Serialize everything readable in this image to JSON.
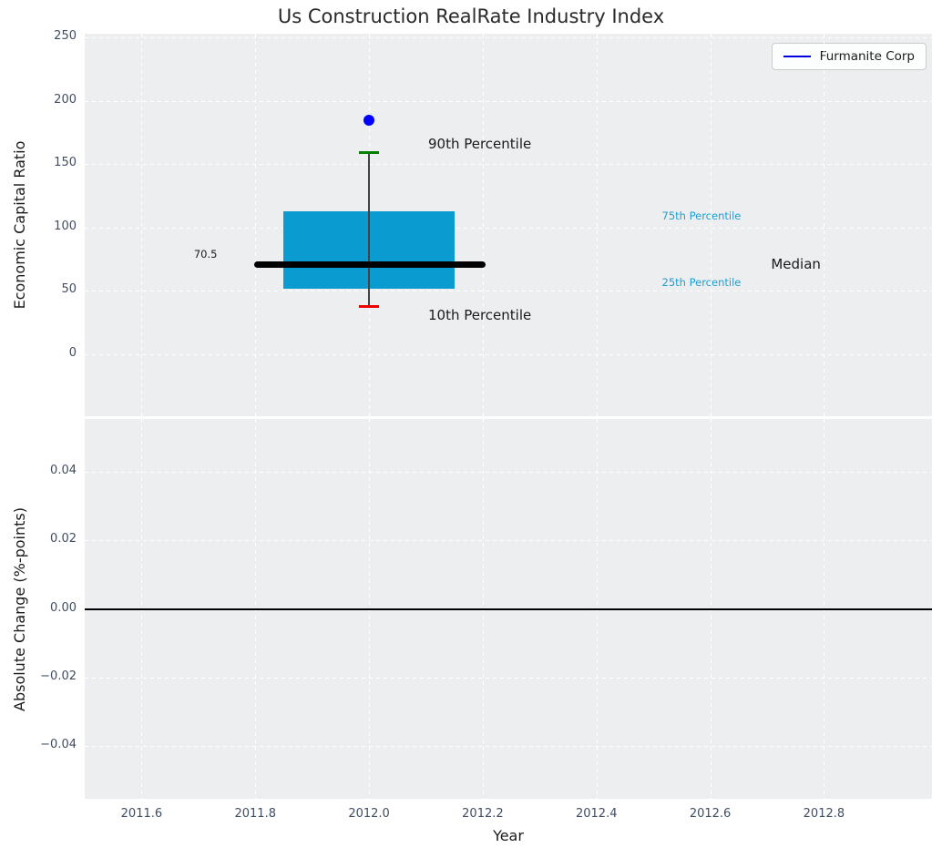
{
  "title": "Us Construction RealRate Industry Index",
  "legend": {
    "label": "Furmanite Corp"
  },
  "colors": {
    "plot_bg": "#eceef0",
    "grid": "#ffffff",
    "tick_text": "#3f4d63",
    "box_fill": "#0a9bd0",
    "percentile_text": "#1d9fd4",
    "median_line": "#000000",
    "p90_cap": "#008000",
    "p10_cap": "#ee0000",
    "company_dot": "#0000ff",
    "whisker": "#444444",
    "zero_line": "#000000",
    "legend_line": "#0000dd",
    "annotation_text": "#1a1a1a"
  },
  "axes": {
    "top": {
      "ylabel": "Economic Capital Ratio",
      "xlim": [
        2011.5,
        2012.99
      ],
      "ylim": [
        -49,
        253
      ],
      "yticks": [
        {
          "v": 0,
          "label": "0"
        },
        {
          "v": 50,
          "label": "50"
        },
        {
          "v": 100,
          "label": "100"
        },
        {
          "v": 150,
          "label": "150"
        },
        {
          "v": 200,
          "label": "200"
        },
        {
          "v": 250,
          "label": "250"
        }
      ]
    },
    "bottom": {
      "ylabel": "Absolute Change (%-points)",
      "xlabel": "Year",
      "xlim": [
        2011.5,
        2012.99
      ],
      "ylim": [
        -0.0555,
        0.0555
      ],
      "yticks": [
        {
          "v": 0.04,
          "label": "0.04"
        },
        {
          "v": 0.02,
          "label": "0.02"
        },
        {
          "v": 0.0,
          "label": "0.00"
        },
        {
          "v": -0.02,
          "label": "−0.02"
        },
        {
          "v": -0.04,
          "label": "−0.04"
        }
      ],
      "xticks": [
        {
          "v": 2011.6,
          "label": "2011.6"
        },
        {
          "v": 2011.8,
          "label": "2011.8"
        },
        {
          "v": 2012.0,
          "label": "2012.0"
        },
        {
          "v": 2012.2,
          "label": "2012.2"
        },
        {
          "v": 2012.4,
          "label": "2012.4"
        },
        {
          "v": 2012.6,
          "label": "2012.6"
        },
        {
          "v": 2012.8,
          "label": "2012.8"
        }
      ]
    }
  },
  "chart_data": {
    "type": "boxplot",
    "title": "Us Construction RealRate Industry Index",
    "xlabel": "Year",
    "ylabel_top": "Economic Capital Ratio",
    "ylabel_bottom": "Absolute Change (%-points)",
    "legend_entries": [
      "Furmanite Corp"
    ],
    "box": {
      "x": 2012.0,
      "box_halfwidth_years": 0.15,
      "cap_halfwidth_years": 0.018,
      "p10": 38,
      "q1": 52,
      "median": 70.5,
      "q3": 113,
      "p90": 159
    },
    "median_line_span": [
      2011.798,
      2012.205
    ],
    "company_point": {
      "name": "Furmanite Corp",
      "x": 2012.0,
      "y": 185
    },
    "bottom_zero_line": 0.0,
    "annotations": [
      {
        "text": "90th Percentile",
        "x": 2012.104,
        "y": 166,
        "size": 15,
        "color": "black",
        "align": "left",
        "name": "p90-label"
      },
      {
        "text": "10th Percentile",
        "x": 2012.104,
        "y": 31,
        "size": 15,
        "color": "black",
        "align": "left",
        "name": "p10-label"
      },
      {
        "text": "75th Percentile",
        "x": 2012.515,
        "y": 109,
        "size": 11.5,
        "color": "cyan",
        "align": "left",
        "name": "p75-label"
      },
      {
        "text": "25th Percentile",
        "x": 2012.515,
        "y": 57,
        "size": 11.5,
        "color": "cyan",
        "align": "left",
        "name": "p25-label"
      },
      {
        "text": "Median",
        "x": 2012.707,
        "y": 71,
        "size": 15,
        "color": "black",
        "align": "left",
        "name": "median-label"
      },
      {
        "text": "70.5",
        "x": 2011.733,
        "y": 79,
        "size": 11.5,
        "color": "black",
        "align": "right",
        "name": "median-value-label"
      }
    ]
  }
}
